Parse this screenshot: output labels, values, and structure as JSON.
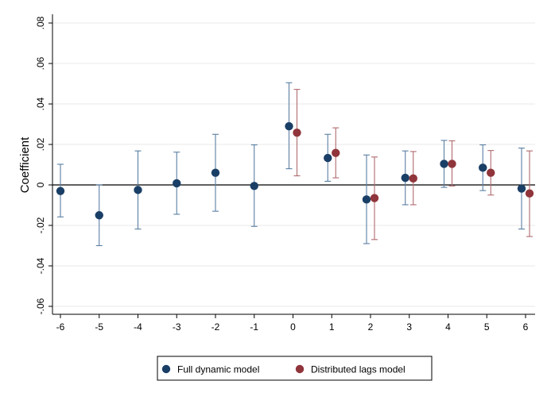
{
  "chart_data": {
    "type": "scatter",
    "title": "",
    "xlabel": "",
    "ylabel": "Coefficient",
    "x_ticks": [
      "-6",
      "-5",
      "-4",
      "-3",
      "-2",
      "-1",
      "0",
      "1",
      "2",
      "3",
      "4",
      "5",
      "6"
    ],
    "y_ticks": [
      ".08",
      ".06",
      ".04",
      ".02",
      "0",
      "-.02",
      "-.04",
      "-.06"
    ],
    "xlim": [
      -6.2,
      6.2
    ],
    "ylim": [
      -0.065,
      0.085
    ],
    "grid": "horizontal",
    "legend_position": "bottom",
    "series": [
      {
        "name": "Full dynamic model",
        "color": "#1a3f66",
        "x": [
          -6,
          -5,
          -4,
          -3,
          -2,
          -1,
          0,
          1,
          2,
          3,
          4,
          5,
          6
        ],
        "y": [
          -0.003,
          -0.015,
          -0.0025,
          0.0008,
          0.006,
          -0.0005,
          0.029,
          0.0133,
          -0.0072,
          0.0035,
          0.0104,
          0.0085,
          -0.0018
        ],
        "ci_low": [
          -0.0158,
          -0.03,
          -0.0218,
          -0.0145,
          -0.013,
          -0.0205,
          0.008,
          0.0018,
          -0.029,
          -0.0098,
          -0.0012,
          -0.0028,
          -0.0218
        ],
        "ci_high": [
          0.0102,
          0.0,
          0.0168,
          0.0162,
          0.025,
          0.0198,
          0.0505,
          0.025,
          0.0148,
          0.0168,
          0.022,
          0.0198,
          0.0182
        ]
      },
      {
        "name": "Distributed lags model",
        "color": "#90353b",
        "x": [
          0,
          1,
          2,
          3,
          4,
          5,
          6
        ],
        "y": [
          0.0258,
          0.0158,
          -0.0065,
          0.0032,
          0.0104,
          0.006,
          -0.0042
        ],
        "ci_low": [
          0.0045,
          0.0035,
          -0.027,
          -0.0098,
          -0.0005,
          -0.005,
          -0.0255
        ],
        "ci_high": [
          0.0472,
          0.0282,
          0.0138,
          0.0165,
          0.0218,
          0.017,
          0.0168
        ]
      }
    ]
  }
}
